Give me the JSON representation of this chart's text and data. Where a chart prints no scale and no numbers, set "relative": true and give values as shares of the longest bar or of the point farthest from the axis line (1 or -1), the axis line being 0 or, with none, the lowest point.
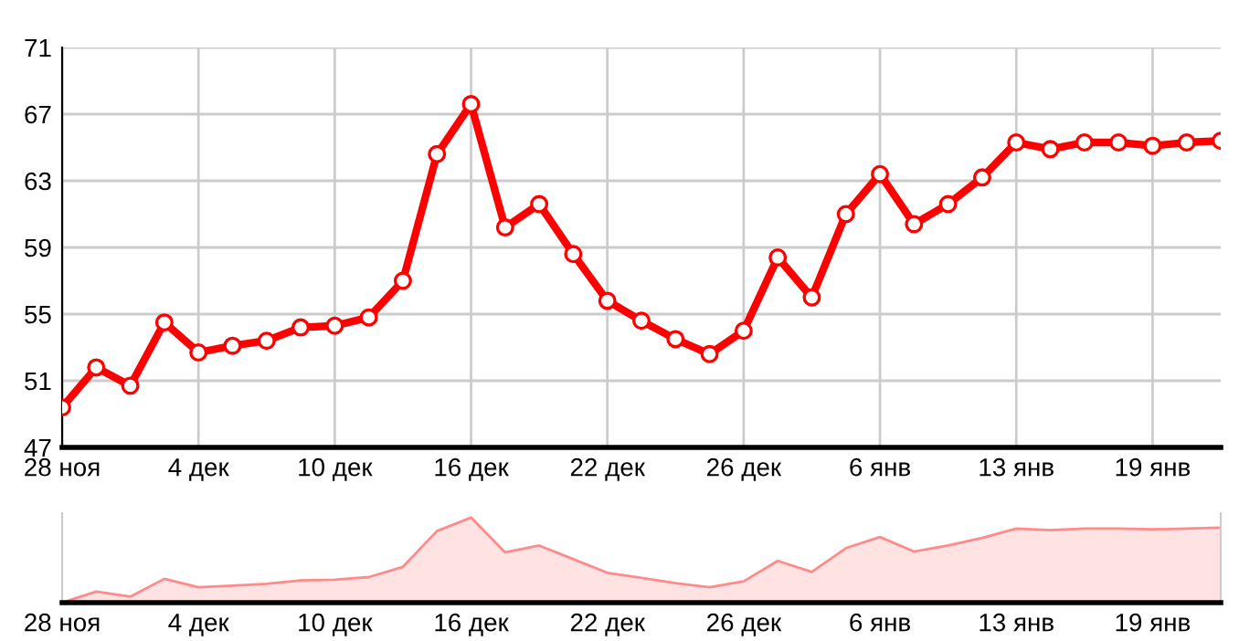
{
  "chart_data": [
    {
      "type": "line",
      "categories": [
        "28 ноя",
        null,
        null,
        null,
        "4 дек",
        null,
        null,
        null,
        "10 дек",
        null,
        null,
        null,
        "16 дек",
        null,
        null,
        null,
        "22 дек",
        null,
        null,
        null,
        "26 дек",
        null,
        null,
        null,
        "6 янв",
        null,
        null,
        null,
        "13 янв",
        null,
        null,
        null,
        "19 янв",
        null,
        null
      ],
      "series": [
        {
          "color": "#ff0000",
          "values": [
            49.4,
            51.8,
            50.7,
            54.5,
            52.7,
            53.1,
            53.4,
            54.2,
            54.3,
            54.8,
            57.0,
            64.6,
            67.6,
            60.2,
            61.6,
            58.6,
            55.8,
            54.6,
            53.5,
            52.6,
            54.0,
            58.4,
            56.0,
            61.0,
            63.4,
            60.4,
            61.6,
            63.2,
            65.3,
            64.9,
            65.3,
            65.3,
            65.1,
            65.3,
            65.4
          ]
        }
      ],
      "ylim": [
        47,
        71
      ],
      "yticks": [
        47,
        51,
        55,
        59,
        63,
        67,
        71
      ],
      "grid": true,
      "marker": "circle",
      "line_style": "solid"
    },
    {
      "type": "area",
      "relative": true,
      "categories": [
        "28 ноя",
        null,
        null,
        null,
        "4 дек",
        null,
        null,
        null,
        "10 дек",
        null,
        null,
        null,
        "16 дек",
        null,
        null,
        null,
        "22 дек",
        null,
        null,
        null,
        "26 дек",
        null,
        null,
        null,
        "6 янв",
        null,
        null,
        null,
        "13 янв",
        null,
        null,
        null,
        "19 янв",
        null,
        null
      ],
      "series": [
        {
          "color": "#ff8a8a",
          "values": [
            0,
            0.13,
            0.07,
            0.28,
            0.18,
            0.2,
            0.22,
            0.26,
            0.27,
            0.3,
            0.42,
            0.84,
            1,
            0.59,
            0.67,
            0.51,
            0.35,
            0.29,
            0.23,
            0.18,
            0.25,
            0.49,
            0.36,
            0.64,
            0.77,
            0.6,
            0.67,
            0.76,
            0.87,
            0.85,
            0.87,
            0.87,
            0.86,
            0.87,
            0.88
          ]
        }
      ]
    }
  ]
}
